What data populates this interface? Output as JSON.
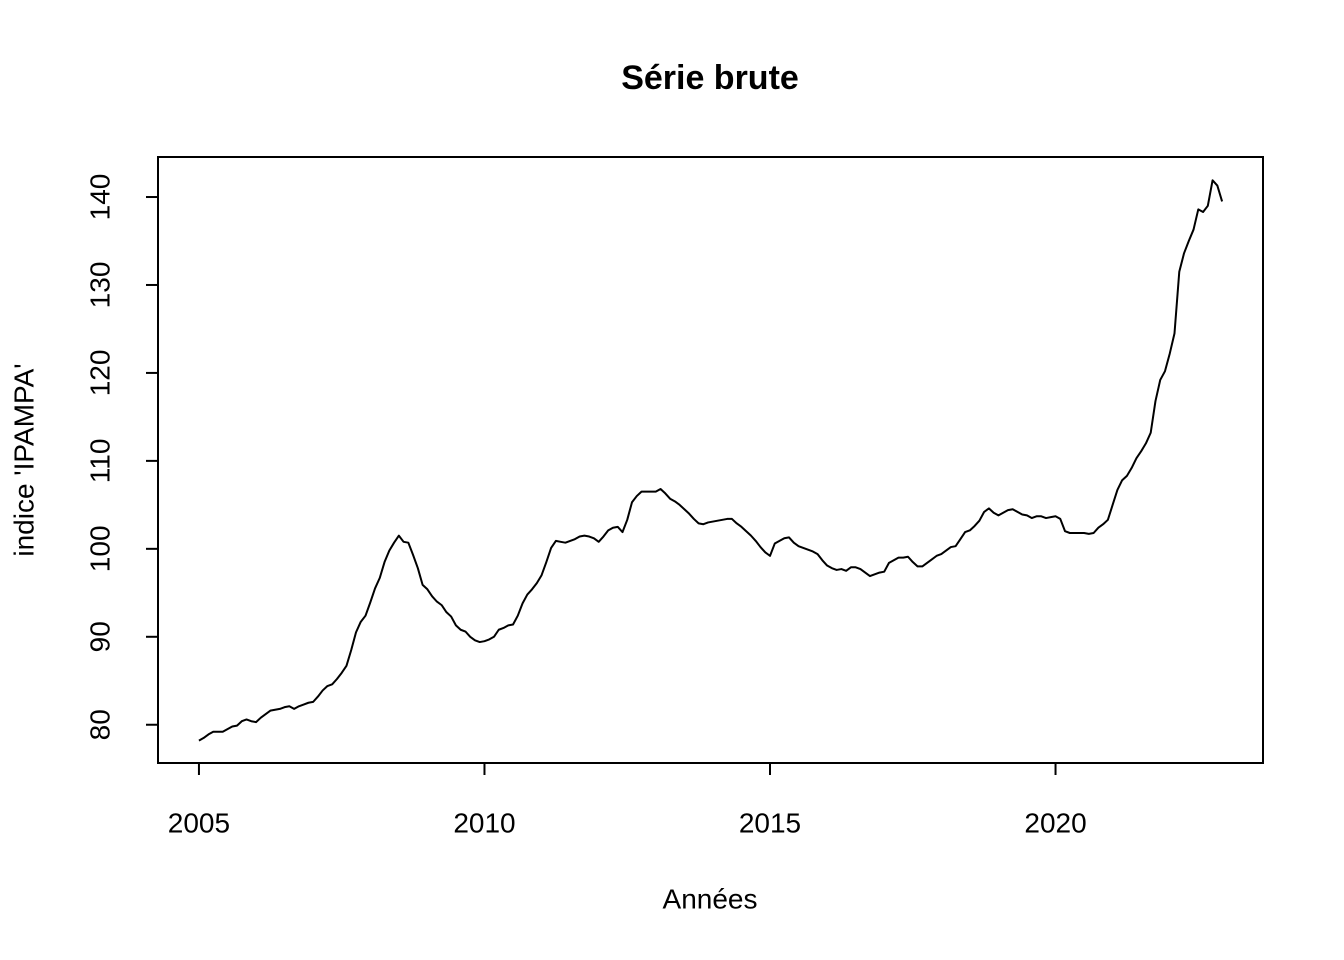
{
  "chart_data": {
    "type": "line",
    "title": "Série brute",
    "x_label": "Années",
    "y_label": "indice 'IPAMPA'",
    "x": [
      2005,
      2005.0833,
      2005.1667,
      2005.25,
      2005.3333,
      2005.4167,
      2005.5,
      2005.5833,
      2005.6667,
      2005.75,
      2005.8333,
      2005.9167,
      2006,
      2006.0833,
      2006.1667,
      2006.25,
      2006.3333,
      2006.4167,
      2006.5,
      2006.5833,
      2006.6667,
      2006.75,
      2006.8333,
      2006.9167,
      2007,
      2007.0833,
      2007.1667,
      2007.25,
      2007.3333,
      2007.4167,
      2007.5,
      2007.5833,
      2007.6667,
      2007.75,
      2007.8333,
      2007.9167,
      2008,
      2008.0833,
      2008.1667,
      2008.25,
      2008.3333,
      2008.4167,
      2008.5,
      2008.5833,
      2008.6667,
      2008.75,
      2008.8333,
      2008.9167,
      2009,
      2009.0833,
      2009.1667,
      2009.25,
      2009.3333,
      2009.4167,
      2009.5,
      2009.5833,
      2009.6667,
      2009.75,
      2009.8333,
      2009.9167,
      2010,
      2010.0833,
      2010.1667,
      2010.25,
      2010.3333,
      2010.4167,
      2010.5,
      2010.5833,
      2010.6667,
      2010.75,
      2010.8333,
      2010.9167,
      2011,
      2011.0833,
      2011.1667,
      2011.25,
      2011.3333,
      2011.4167,
      2011.5,
      2011.5833,
      2011.6667,
      2011.75,
      2011.8333,
      2011.9167,
      2012,
      2012.0833,
      2012.1667,
      2012.25,
      2012.3333,
      2012.4167,
      2012.5,
      2012.5833,
      2012.6667,
      2012.75,
      2012.8333,
      2012.9167,
      2013,
      2013.0833,
      2013.1667,
      2013.25,
      2013.3333,
      2013.4167,
      2013.5,
      2013.5833,
      2013.6667,
      2013.75,
      2013.8333,
      2013.9167,
      2014,
      2014.0833,
      2014.1667,
      2014.25,
      2014.3333,
      2014.4167,
      2014.5,
      2014.5833,
      2014.6667,
      2014.75,
      2014.8333,
      2014.9167,
      2015,
      2015.0833,
      2015.1667,
      2015.25,
      2015.3333,
      2015.4167,
      2015.5,
      2015.5833,
      2015.6667,
      2015.75,
      2015.8333,
      2015.9167,
      2016,
      2016.0833,
      2016.1667,
      2016.25,
      2016.3333,
      2016.4167,
      2016.5,
      2016.5833,
      2016.6667,
      2016.75,
      2016.8333,
      2016.9167,
      2017,
      2017.0833,
      2017.1667,
      2017.25,
      2017.3333,
      2017.4167,
      2017.5,
      2017.5833,
      2017.6667,
      2017.75,
      2017.8333,
      2017.9167,
      2018,
      2018.0833,
      2018.1667,
      2018.25,
      2018.3333,
      2018.4167,
      2018.5,
      2018.5833,
      2018.6667,
      2018.75,
      2018.8333,
      2018.9167,
      2019,
      2019.0833,
      2019.1667,
      2019.25,
      2019.3333,
      2019.4167,
      2019.5,
      2019.5833,
      2019.6667,
      2019.75,
      2019.8333,
      2019.9167,
      2020,
      2020.0833,
      2020.1667,
      2020.25,
      2020.3333,
      2020.4167,
      2020.5,
      2020.5833,
      2020.6667,
      2020.75,
      2020.8333,
      2020.9167,
      2021,
      2021.0833,
      2021.1667,
      2021.25,
      2021.3333,
      2021.4167,
      2021.5,
      2021.5833,
      2021.6667,
      2021.75,
      2021.8333,
      2021.9167,
      2022,
      2022.0833,
      2022.1667,
      2022.25,
      2022.3333,
      2022.4167,
      2022.5,
      2022.5833,
      2022.6667,
      2022.75,
      2022.8333,
      2022.9167
    ],
    "series": [
      {
        "color": "#000000",
        "values": [
          78.2,
          78.5,
          78.9,
          79.2,
          79.2,
          79.2,
          79.5,
          79.8,
          79.9,
          80.4,
          80.6,
          80.4,
          80.3,
          80.8,
          81.2,
          81.6,
          81.7,
          81.8,
          82.0,
          82.1,
          81.8,
          82.1,
          82.3,
          82.5,
          82.6,
          83.2,
          83.9,
          84.4,
          84.6,
          85.2,
          85.9,
          86.7,
          88.5,
          90.5,
          91.7,
          92.4,
          93.9,
          95.5,
          96.7,
          98.5,
          99.8,
          100.7,
          101.5,
          100.8,
          100.7,
          99.3,
          97.8,
          95.9,
          95.4,
          94.6,
          94.0,
          93.6,
          92.8,
          92.3,
          91.3,
          90.8,
          90.6,
          90.0,
          89.6,
          89.4,
          89.5,
          89.7,
          90.0,
          90.8,
          91.0,
          91.3,
          91.4,
          92.4,
          93.8,
          94.8,
          95.4,
          96.1,
          97.0,
          98.5,
          100.1,
          100.9,
          100.8,
          100.7,
          100.9,
          101.1,
          101.4,
          101.5,
          101.4,
          101.2,
          100.8,
          101.4,
          102.1,
          102.4,
          102.5,
          101.9,
          103.3,
          105.3,
          106.0,
          106.5,
          106.5,
          106.5,
          106.5,
          106.8,
          106.3,
          105.7,
          105.4,
          105.0,
          104.5,
          104.0,
          103.4,
          102.9,
          102.8,
          103.0,
          103.1,
          103.2,
          103.3,
          103.4,
          103.4,
          102.9,
          102.5,
          102.0,
          101.5,
          100.9,
          100.2,
          99.6,
          99.2,
          100.6,
          100.9,
          101.2,
          101.3,
          100.7,
          100.3,
          100.1,
          99.9,
          99.7,
          99.4,
          98.7,
          98.1,
          97.8,
          97.6,
          97.7,
          97.5,
          97.9,
          97.9,
          97.7,
          97.3,
          96.9,
          97.1,
          97.3,
          97.4,
          98.4,
          98.7,
          99.0,
          99.0,
          99.1,
          98.5,
          98.0,
          98.0,
          98.4,
          98.8,
          99.2,
          99.4,
          99.8,
          100.2,
          100.3,
          101.1,
          101.9,
          102.1,
          102.6,
          103.2,
          104.2,
          104.6,
          104.1,
          103.8,
          104.1,
          104.4,
          104.5,
          104.2,
          103.9,
          103.8,
          103.5,
          103.7,
          103.7,
          103.5,
          103.6,
          103.7,
          103.4,
          102.0,
          101.8,
          101.8,
          101.8,
          101.8,
          101.7,
          101.8,
          102.4,
          102.8,
          103.3,
          105.0,
          106.7,
          107.8,
          108.3,
          109.2,
          110.3,
          111.1,
          112.0,
          113.2,
          116.8,
          119.2,
          120.2,
          122.2,
          124.5,
          131.5,
          133.6,
          135.0,
          136.3,
          138.6,
          138.3,
          139.0,
          141.9,
          141.3,
          139.5
        ]
      }
    ],
    "xlim": [
      2004.283,
      2023.633
    ],
    "xticks": [
      2005,
      2010,
      2015,
      2020
    ],
    "ylim": [
      75.65,
      144.55
    ],
    "yticks": [
      80,
      90,
      100,
      110,
      120,
      130,
      140
    ]
  }
}
